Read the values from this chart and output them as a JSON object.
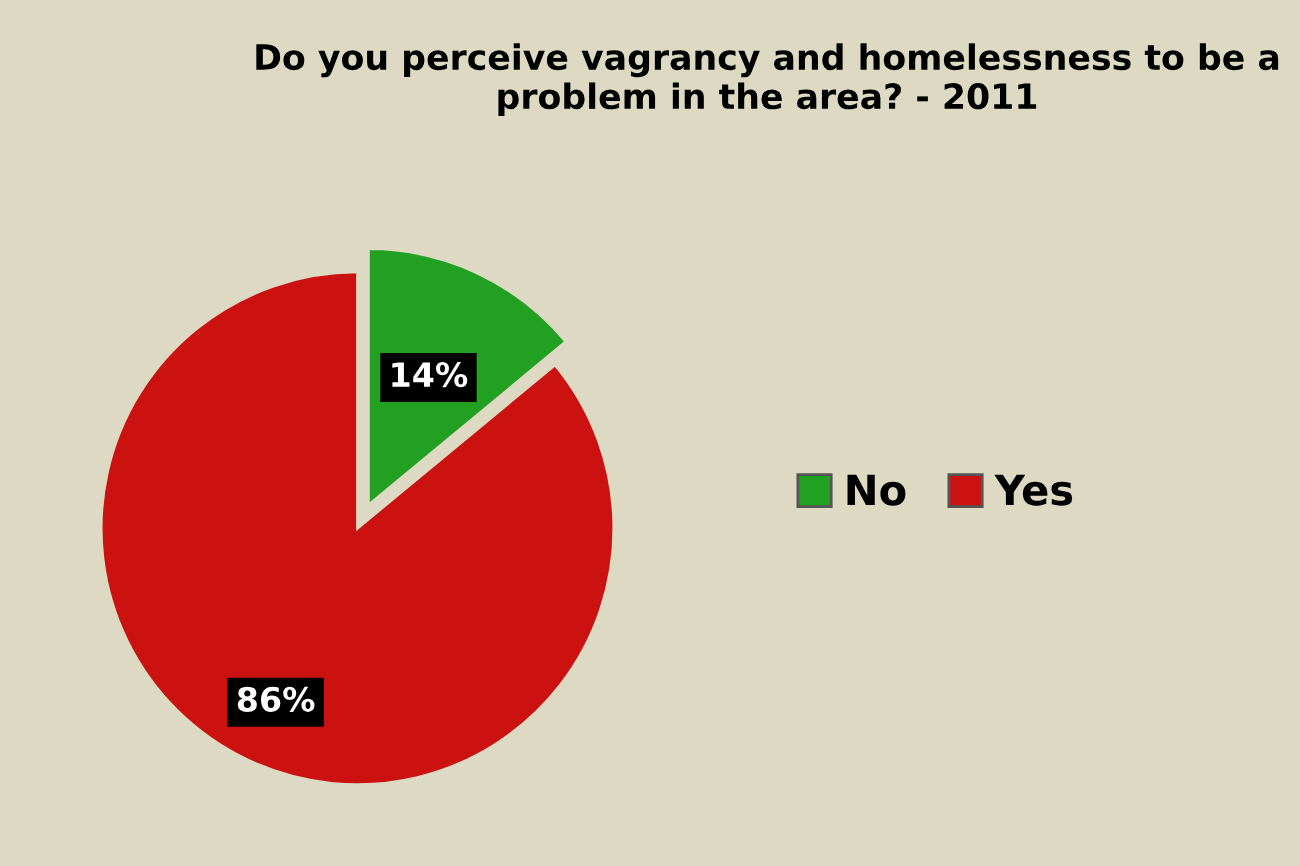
{
  "chart_data": {
    "type": "pie",
    "title": "Do you perceive vagrancy and homelessness to be a problem in the area? - 2011",
    "categories": [
      "No",
      "Yes"
    ],
    "values": [
      14,
      86
    ],
    "colors": [
      "#22a022",
      "#cc1111"
    ],
    "value_labels": [
      "14%",
      "86%"
    ],
    "legend": "right"
  }
}
